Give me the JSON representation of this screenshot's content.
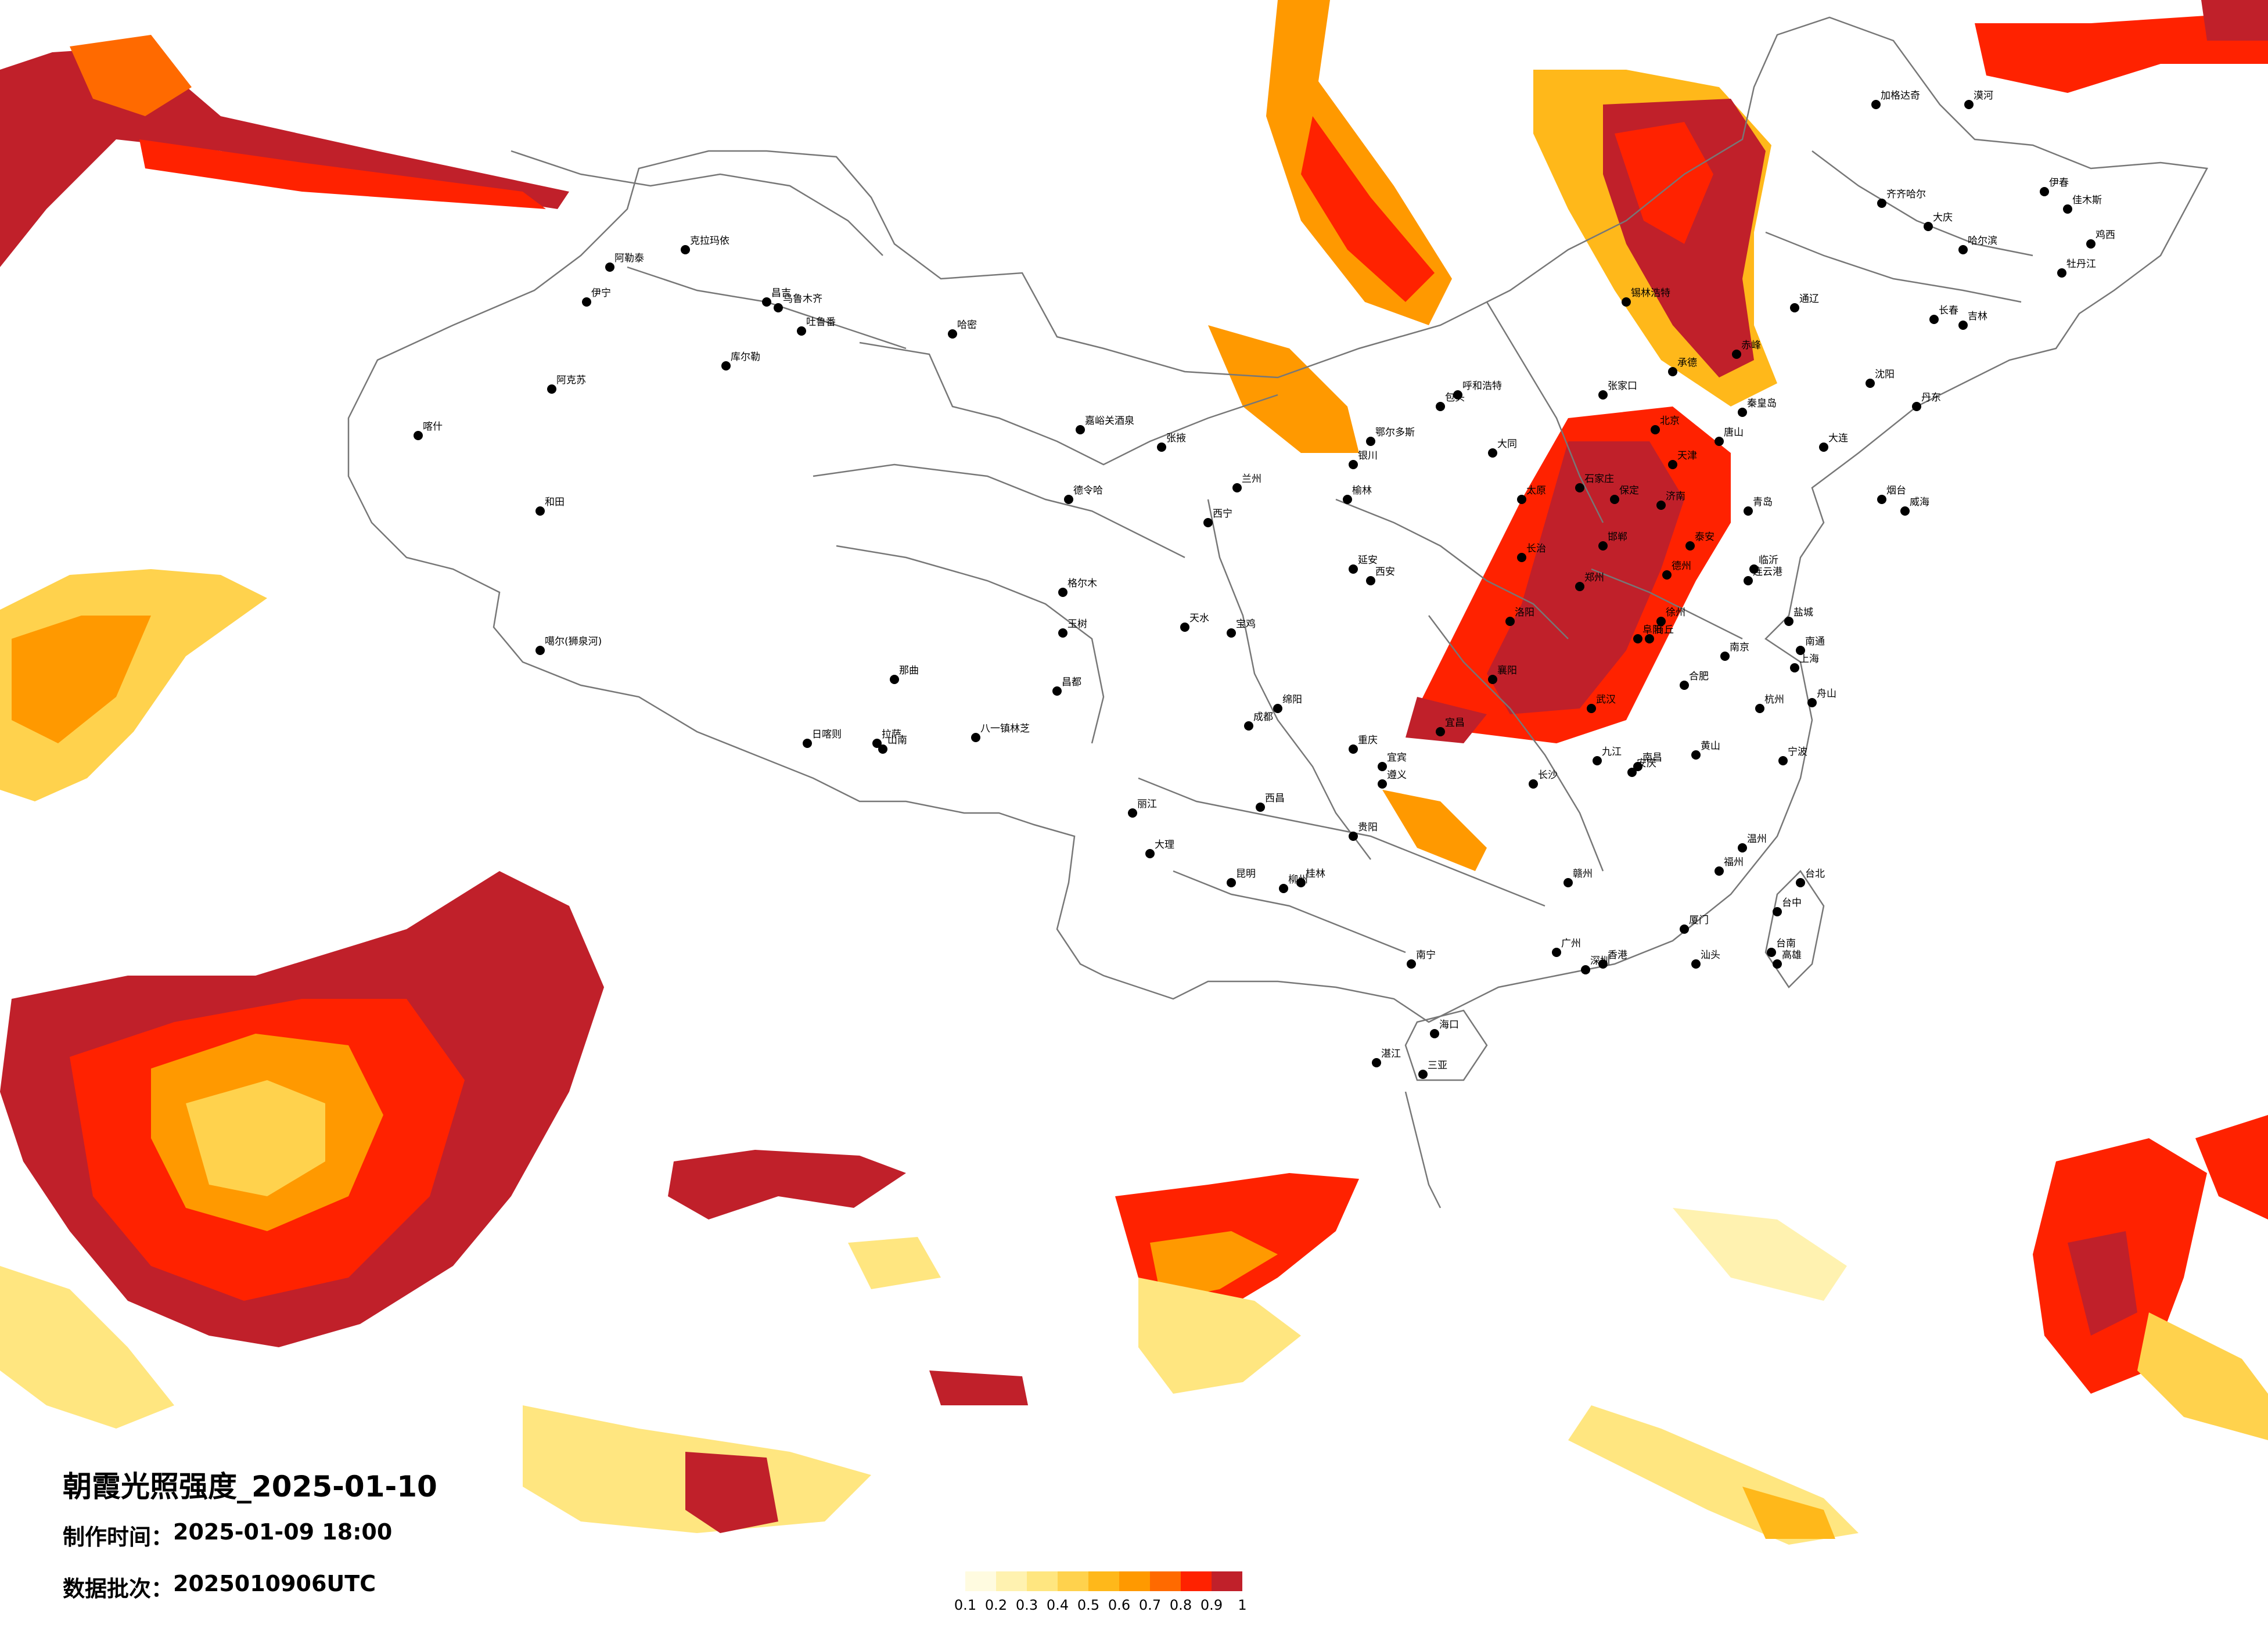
{
  "title": "朝霞光照强度_2025-01-10",
  "made_time_label": "制作时间：",
  "made_time_value": "2025-01-09 18:00",
  "batch_label": "数据批次：",
  "batch_value": "2025010906UTC",
  "legend": {
    "ticks": [
      "0.1",
      "0.2",
      "0.3",
      "0.4",
      "0.5",
      "0.6",
      "0.7",
      "0.8",
      "0.9",
      "1"
    ],
    "colors": [
      "#fffbe0",
      "#fff2b0",
      "#ffe680",
      "#ffd24d",
      "#ffb81a",
      "#ff9900",
      "#ff6a00",
      "#ff2200",
      "#c0202a"
    ]
  },
  "colors": {
    "border": "#777777",
    "city_dot": "#000000"
  },
  "cities": [
    {
      "name": "克拉玛依"
    },
    {
      "name": "阿勒泰"
    },
    {
      "name": "伊宁"
    },
    {
      "name": "昌吉"
    },
    {
      "name": "乌鲁木齐"
    },
    {
      "name": "吐鲁番"
    },
    {
      "name": "哈密"
    },
    {
      "name": "库尔勒"
    },
    {
      "name": "阿克苏"
    },
    {
      "name": "喀什"
    },
    {
      "name": "和田"
    },
    {
      "name": "嘉峪关酒泉"
    },
    {
      "name": "张掖"
    },
    {
      "name": "德令哈"
    },
    {
      "name": "格尔木"
    },
    {
      "name": "噶尔(狮泉河)"
    },
    {
      "name": "日喀则"
    },
    {
      "name": "拉萨"
    },
    {
      "name": "山南"
    },
    {
      "name": "八一镇林芝"
    },
    {
      "name": "那曲"
    },
    {
      "name": "昌都"
    },
    {
      "name": "玉树"
    },
    {
      "name": "西宁"
    },
    {
      "name": "兰州"
    },
    {
      "name": "银川"
    },
    {
      "name": "呼和浩特"
    },
    {
      "name": "包头"
    },
    {
      "name": "鄂尔多斯"
    },
    {
      "name": "张家口"
    },
    {
      "name": "北京"
    },
    {
      "name": "天津"
    },
    {
      "name": "石家庄"
    },
    {
      "name": "太原"
    },
    {
      "name": "济南"
    },
    {
      "name": "青岛"
    },
    {
      "name": "郑州"
    },
    {
      "name": "西安"
    },
    {
      "name": "成都"
    },
    {
      "name": "重庆"
    },
    {
      "name": "贵阳"
    },
    {
      "name": "昆明"
    },
    {
      "name": "南宁"
    },
    {
      "name": "海口"
    },
    {
      "name": "广州"
    },
    {
      "name": "深圳"
    },
    {
      "name": "香港"
    },
    {
      "name": "福州"
    },
    {
      "name": "厦门"
    },
    {
      "name": "台北"
    },
    {
      "name": "台中"
    },
    {
      "name": "台南"
    },
    {
      "name": "高雄"
    },
    {
      "name": "杭州"
    },
    {
      "name": "上海"
    },
    {
      "name": "南京"
    },
    {
      "name": "合肥"
    },
    {
      "name": "武汉"
    },
    {
      "name": "长沙"
    },
    {
      "name": "南昌"
    },
    {
      "name": "沈阳"
    },
    {
      "name": "大连"
    },
    {
      "name": "长春"
    },
    {
      "name": "吉林"
    },
    {
      "name": "哈尔滨"
    },
    {
      "name": "齐齐哈尔"
    },
    {
      "name": "大庆"
    },
    {
      "name": "牡丹江"
    },
    {
      "name": "佳木斯"
    },
    {
      "name": "鸡西"
    },
    {
      "name": "伊春"
    },
    {
      "name": "漠河"
    },
    {
      "name": "加格达奇"
    },
    {
      "name": "锡林浩特"
    },
    {
      "name": "赤峰"
    },
    {
      "name": "通辽"
    },
    {
      "name": "丹东"
    },
    {
      "name": "烟台"
    },
    {
      "name": "威海"
    },
    {
      "name": "连云港"
    },
    {
      "name": "徐州"
    },
    {
      "name": "宁波"
    },
    {
      "name": "温州"
    },
    {
      "name": "桂林"
    },
    {
      "name": "柳州"
    },
    {
      "name": "湛江"
    },
    {
      "name": "三亚"
    },
    {
      "name": "大理"
    },
    {
      "name": "丽江"
    },
    {
      "name": "西昌"
    },
    {
      "name": "绵阳"
    },
    {
      "name": "宜宾"
    },
    {
      "name": "遵义"
    },
    {
      "name": "宜昌"
    },
    {
      "name": "襄阳"
    },
    {
      "name": "洛阳"
    },
    {
      "name": "宝鸡"
    },
    {
      "name": "天水"
    },
    {
      "name": "延安"
    },
    {
      "name": "榆林"
    },
    {
      "name": "大同"
    },
    {
      "name": "长治"
    },
    {
      "name": "邯郸"
    },
    {
      "name": "保定"
    },
    {
      "name": "唐山"
    },
    {
      "name": "秦皇岛"
    },
    {
      "name": "承德"
    },
    {
      "name": "九江"
    },
    {
      "name": "赣州"
    },
    {
      "name": "汕头"
    },
    {
      "name": "舟山"
    },
    {
      "name": "黄山"
    },
    {
      "name": "安庆"
    },
    {
      "name": "阜阳"
    },
    {
      "name": "商丘"
    },
    {
      "name": "德州"
    },
    {
      "name": "泰安"
    },
    {
      "name": "临沂"
    },
    {
      "name": "盐城"
    },
    {
      "name": "南通"
    }
  ]
}
